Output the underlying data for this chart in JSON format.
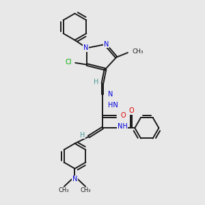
{
  "bg_color": "#e8e8e8",
  "bond_color": "#1a1a1a",
  "N_color": "#0000dd",
  "O_color": "#dd0000",
  "Cl_color": "#00aa00",
  "H_color": "#4a9a9a",
  "line_width": 1.4,
  "figsize": [
    3.0,
    3.0
  ],
  "dpi": 100,
  "xlim": [
    0,
    10
  ],
  "ylim": [
    0,
    11
  ]
}
